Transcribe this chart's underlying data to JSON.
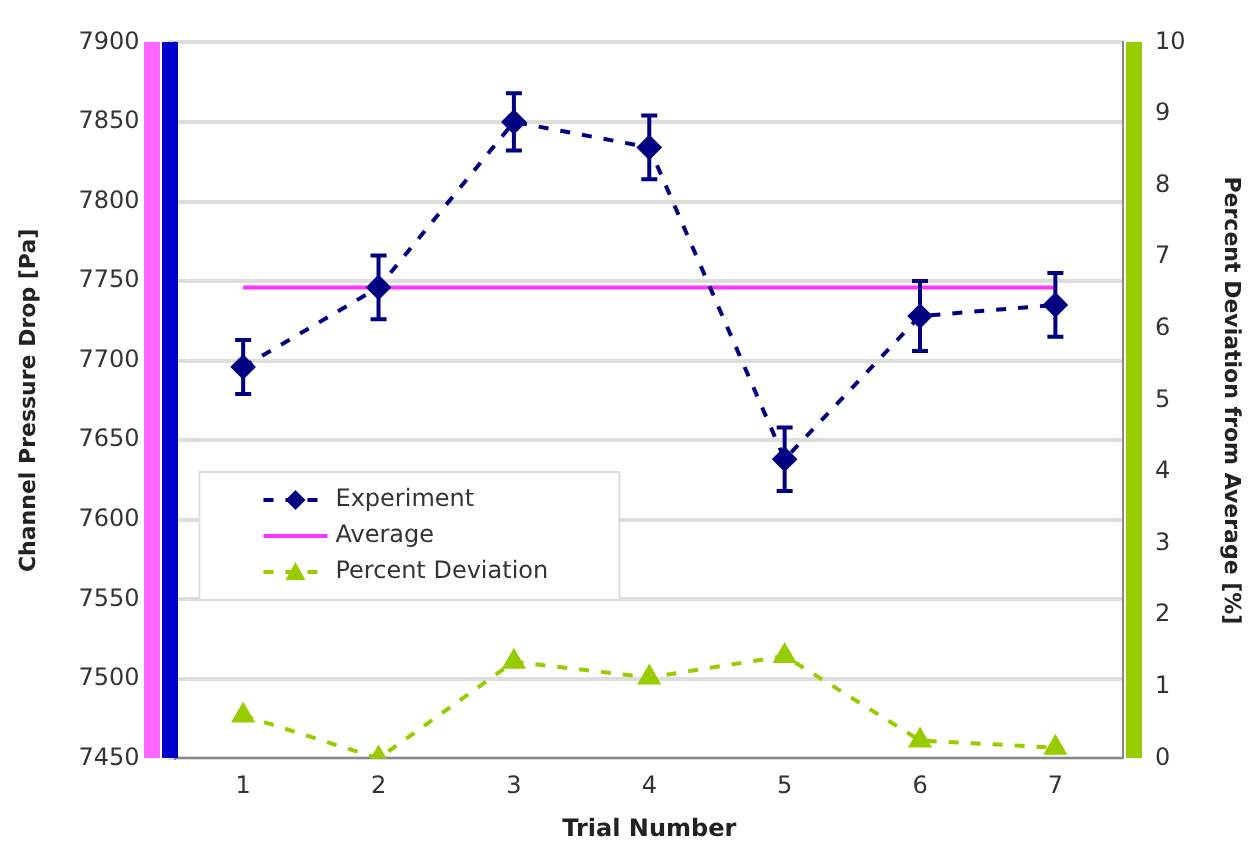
{
  "chart_data": {
    "type": "line",
    "xlabel": "Trial Number",
    "ylabel": "Channel Pressure Drop [Pa]",
    "y2label": "Percent Deviation from Average [%]",
    "categories": [
      "1",
      "2",
      "3",
      "4",
      "5",
      "6",
      "7"
    ],
    "series": [
      {
        "name": "Experiment",
        "color": "#000080",
        "values": [
          7696,
          7746,
          7850,
          7834,
          7638,
          7728,
          7735
        ],
        "errors": [
          17,
          20,
          18,
          20,
          20,
          22,
          20
        ],
        "marker": "diamond",
        "line_style": "dashed"
      },
      {
        "name": "Average",
        "color": "#ff33ff",
        "values": [
          7746,
          7746,
          7746,
          7746,
          7746,
          7746,
          7746
        ],
        "marker": "none",
        "line_style": "solid"
      },
      {
        "name": "Percent Deviation",
        "color": "#99cc00",
        "values": [
          0.6,
          0,
          1.35,
          1.13,
          1.43,
          0.25,
          0.15
        ],
        "axis": "y2",
        "marker": "triangle",
        "line_style": "dashed"
      }
    ],
    "ylim": [
      7450,
      7900
    ],
    "yticks": [
      7450,
      7500,
      7550,
      7600,
      7650,
      7700,
      7750,
      7800,
      7850,
      7900
    ],
    "y2lim": [
      0,
      10
    ],
    "y2ticks": [
      0,
      1,
      2,
      3,
      4,
      5,
      6,
      7,
      8,
      9,
      10
    ],
    "grid": "y",
    "legend": "left"
  }
}
